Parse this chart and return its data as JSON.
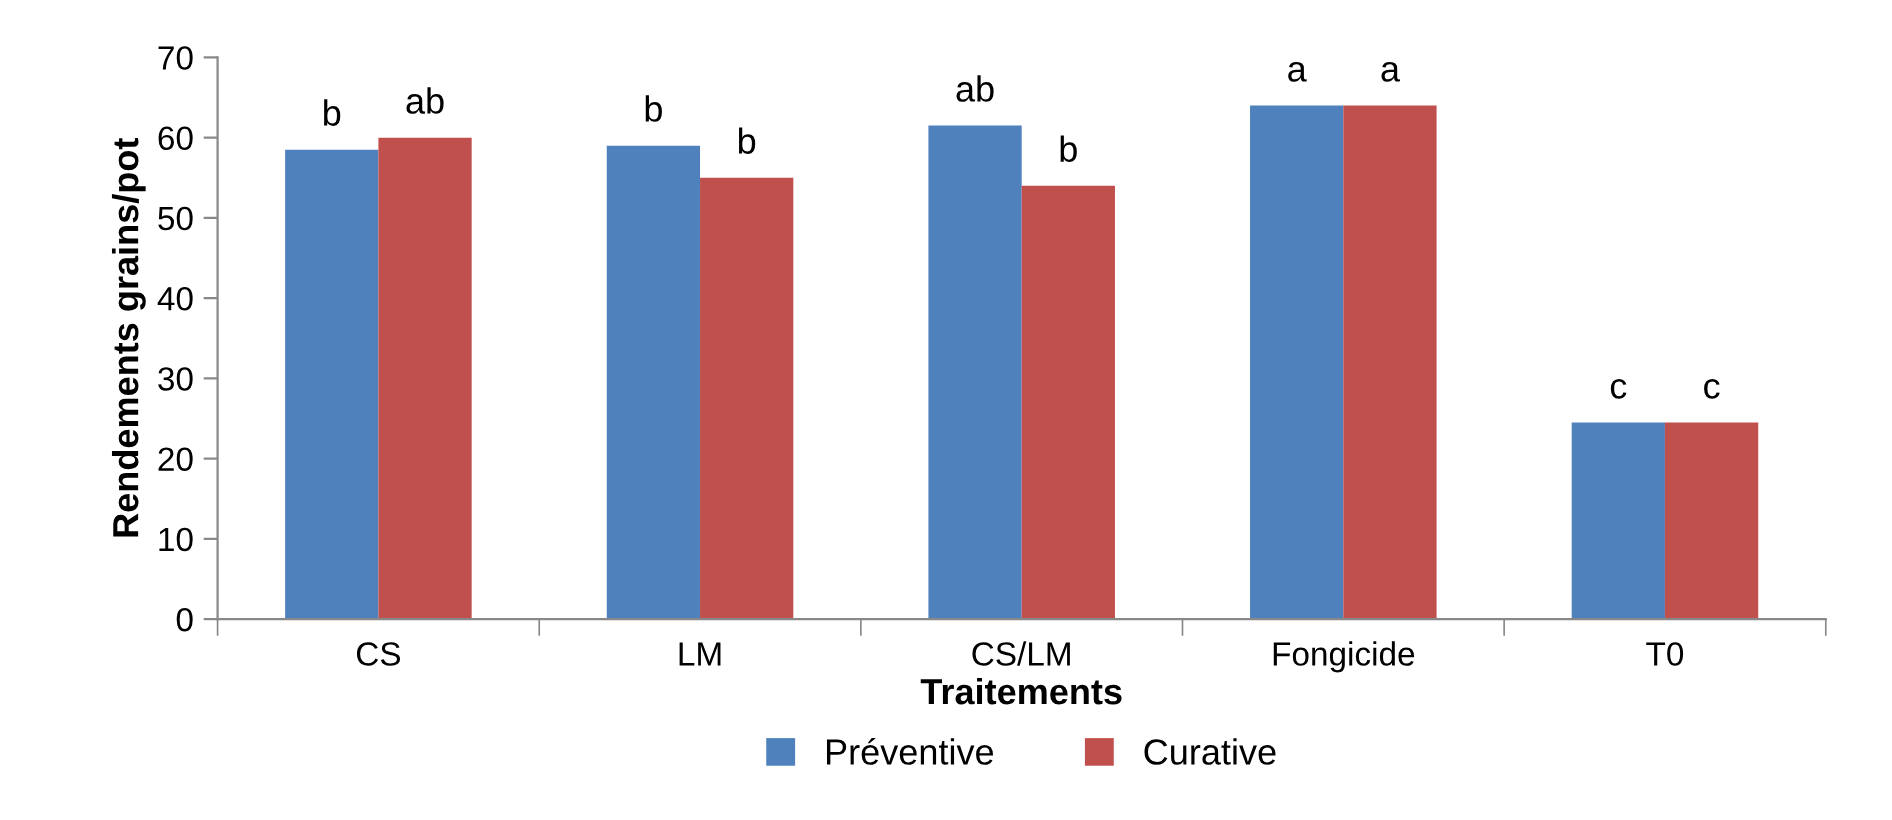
{
  "chart_data": {
    "type": "bar",
    "xlabel": "Traitements",
    "ylabel": "Rendements grains/pot",
    "categories": [
      "CS",
      "LM",
      "CS/LM",
      "Fongicide",
      "T0"
    ],
    "series": [
      {
        "name": "Préventive",
        "color": "#4f81bd",
        "values": [
          58.5,
          59,
          61.5,
          64,
          24.5
        ],
        "value_labels": [
          "b",
          "b",
          "ab",
          "a",
          "c"
        ]
      },
      {
        "name": "Curative",
        "color": "#c0504d",
        "values": [
          60,
          55,
          54,
          64,
          24.5
        ],
        "value_labels": [
          "ab",
          "b",
          "b",
          "a",
          "c"
        ]
      }
    ],
    "ylim": [
      0,
      70
    ],
    "yticks": [
      0,
      10,
      20,
      30,
      40,
      50,
      60,
      70
    ],
    "grid": false,
    "legend": "bottom"
  }
}
